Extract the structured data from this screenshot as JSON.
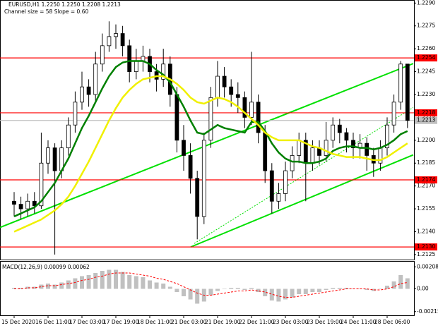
{
  "chart_data": [
    {
      "type": "candlestick",
      "title": "EURUSD,H1  1.2250 1.2250 1.2208 1.2213",
      "subtitle": "Channel size = 58 Slope = 0.60",
      "categories": [
        "15 Dec 2020",
        null,
        null,
        null,
        null,
        "16 Dec 11:00",
        null,
        null,
        null,
        null,
        "17 Dec 03:00",
        null,
        null,
        null,
        null,
        "17 Dec 19:00",
        null,
        null,
        null,
        null,
        "18 Dec 11:00",
        null,
        null,
        null,
        null,
        "21 Dec 03:00",
        null,
        null,
        null,
        null,
        "21 Dec 19:00",
        null,
        null,
        null,
        null,
        "22 Dec 11:00",
        null,
        null,
        null,
        null,
        "23 Dec 03:00",
        null,
        null,
        null,
        null,
        "23 Dec 19:00",
        null,
        null,
        null,
        null,
        "24 Dec 11:00",
        null,
        null,
        null,
        null,
        "28 Dec 06:00",
        null,
        null,
        null
      ],
      "open": [
        1.216,
        1.2158,
        1.2155,
        1.216,
        1.2157,
        1.2185,
        1.2195,
        1.218,
        1.2195,
        1.221,
        1.2225,
        1.2235,
        1.223,
        1.225,
        1.2262,
        1.2268,
        1.227,
        1.2262,
        1.2245,
        1.2252,
        1.2255,
        1.2245,
        1.224,
        1.225,
        1.223,
        1.22,
        1.219,
        1.2175,
        1.215,
        1.22,
        1.2228,
        1.2242,
        1.2235,
        1.223,
        1.2228,
        1.2215,
        1.2225,
        1.2205,
        1.218,
        1.216,
        1.2165,
        1.218,
        1.219,
        1.22,
        1.2185,
        1.2195,
        1.219,
        1.22,
        1.221,
        1.2205,
        1.22,
        1.2195,
        1.2198,
        1.219,
        1.2185,
        1.2195,
        1.221,
        1.2225,
        1.225
      ],
      "high": [
        1.2166,
        1.2163,
        1.2165,
        1.2166,
        1.2205,
        1.22,
        1.2198,
        1.22,
        1.2215,
        1.2232,
        1.2245,
        1.224,
        1.2258,
        1.227,
        1.2278,
        1.2276,
        1.2275,
        1.2266,
        1.226,
        1.2262,
        1.226,
        1.225,
        1.226,
        1.2255,
        1.2235,
        1.221,
        1.2198,
        1.218,
        1.2205,
        1.2235,
        1.2252,
        1.2248,
        1.224,
        1.2238,
        1.2232,
        1.2258,
        1.223,
        1.221,
        1.2185,
        1.2172,
        1.2186,
        1.2196,
        1.2205,
        1.2205,
        1.22,
        1.22,
        1.2212,
        1.2215,
        1.2214,
        1.2208,
        1.2205,
        1.2204,
        1.2202,
        1.2195,
        1.22,
        1.2215,
        1.223,
        1.2252,
        1.225
      ],
      "low": [
        1.215,
        1.2148,
        1.215,
        1.2152,
        1.2155,
        1.2178,
        1.2125,
        1.2175,
        1.219,
        1.2205,
        1.222,
        1.2222,
        1.2225,
        1.2245,
        1.2258,
        1.226,
        1.2255,
        1.2238,
        1.224,
        1.2245,
        1.2238,
        1.2232,
        1.2235,
        1.2222,
        1.2192,
        1.218,
        1.2165,
        1.2135,
        1.2145,
        1.2195,
        1.2222,
        1.2228,
        1.2222,
        1.2218,
        1.2208,
        1.221,
        1.2198,
        1.2172,
        1.2152,
        1.2155,
        1.216,
        1.2175,
        1.2185,
        1.216,
        1.218,
        1.2184,
        1.2186,
        1.2195,
        1.2198,
        1.2192,
        1.2188,
        1.2188,
        1.218,
        1.2176,
        1.218,
        1.219,
        1.2205,
        1.222,
        1.2208
      ],
      "close": [
        1.2158,
        1.2155,
        1.216,
        1.2157,
        1.2185,
        1.2195,
        1.218,
        1.2195,
        1.221,
        1.2225,
        1.2235,
        1.223,
        1.225,
        1.2262,
        1.2268,
        1.227,
        1.2262,
        1.2245,
        1.2252,
        1.2255,
        1.2245,
        1.224,
        1.225,
        1.223,
        1.22,
        1.219,
        1.2175,
        1.215,
        1.22,
        1.2228,
        1.2242,
        1.2235,
        1.223,
        1.2228,
        1.2215,
        1.2225,
        1.2205,
        1.218,
        1.216,
        1.2165,
        1.218,
        1.219,
        1.22,
        1.2185,
        1.2195,
        1.219,
        1.22,
        1.221,
        1.2205,
        1.22,
        1.2195,
        1.2198,
        1.219,
        1.2185,
        1.2195,
        1.221,
        1.2225,
        1.225,
        1.2213
      ],
      "series": [
        {
          "color": "#008000",
          "values": [
            1.215,
            1.2152,
            1.2154,
            1.2156,
            1.216,
            1.2166,
            1.2172,
            1.218,
            1.2188,
            1.2198,
            1.2208,
            1.2216,
            1.2225,
            1.2234,
            1.2242,
            1.2248,
            1.2251,
            1.2252,
            1.2252,
            1.2252,
            1.225,
            1.2246,
            1.2243,
            1.2238,
            1.223,
            1.2222,
            1.2213,
            1.2205,
            1.2204,
            1.2207,
            1.221,
            1.2208,
            1.2207,
            1.2206,
            1.2205,
            1.2212,
            1.2212,
            1.2206,
            1.2198,
            1.2192,
            1.2188,
            1.2186,
            1.2186,
            1.2185,
            1.2185,
            1.2186,
            1.2188,
            1.2193,
            1.2195,
            1.2196,
            1.2196,
            1.2195,
            1.2195,
            1.2194,
            1.2195,
            1.2197,
            1.22,
            1.2204,
            1.2206
          ]
        },
        {
          "color": "#f0f000",
          "values": [
            1.214,
            1.2142,
            1.2144,
            1.2146,
            1.2148,
            1.2151,
            1.2154,
            1.2158,
            1.2163,
            1.217,
            1.2178,
            1.2186,
            1.2195,
            1.2204,
            1.2213,
            1.2221,
            1.2228,
            1.2233,
            1.2237,
            1.224,
            1.2241,
            1.2242,
            1.2242,
            1.224,
            1.2237,
            1.2233,
            1.2228,
            1.2225,
            1.2224,
            1.2226,
            1.2228,
            1.2227,
            1.2225,
            1.2222,
            1.2218,
            1.2214,
            1.221,
            1.2205,
            1.2202,
            1.22,
            1.22,
            1.22,
            1.22,
            1.2198,
            1.2196,
            1.2195,
            1.2193,
            1.2191,
            1.219,
            1.2189,
            1.2189,
            1.2189,
            1.2188,
            1.2187,
            1.2187,
            1.2189,
            1.2192,
            1.2195,
            1.2198
          ]
        }
      ],
      "trend_lines": [
        {
          "x": [
            -2.08,
            58.85
          ],
          "y": [
            1.21428,
            1.22503
          ],
          "color": "#00e000",
          "dash": false
        },
        {
          "x": [
            26.04,
            58.85
          ],
          "y": [
            1.213,
            1.21904
          ],
          "color": "#00e000",
          "dash": false
        },
        {
          "x": [
            26.56,
            58.85
          ],
          "y": [
            1.21323,
            1.22215
          ],
          "color": "#00e000",
          "dash": true
        }
      ],
      "levels": [
        {
          "value": 1.2254,
          "color": "#ff0000",
          "text_color": "#ffffff"
        },
        {
          "value": 1.2218,
          "color": "#ff0000",
          "text_color": "#ffffff"
        },
        {
          "value": 1.2213,
          "color": "#c0c0c0",
          "text_color": "#000000"
        },
        {
          "value": 1.2174,
          "color": "#ff0000",
          "text_color": "#ffffff"
        },
        {
          "value": 1.213,
          "label": "1.2130",
          "color": "#ff0000",
          "text_color": "#ffffff"
        }
      ],
      "ylim": [
        1.21245,
        1.2292
      ],
      "yticks": [
        {
          "value": 1.229,
          "label": "1.2290"
        },
        1.2275,
        {
          "value": 1.226,
          "label": "1.2260"
        },
        1.2245,
        {
          "value": 1.223,
          "label": "1.2230"
        },
        1.2215,
        {
          "value": 1.22,
          "label": "1.2200"
        },
        1.2185,
        {
          "value": 1.217,
          "label": "1.2170"
        },
        1.2155,
        {
          "value": 1.214,
          "label": "1.2140"
        },
        1.2125
      ]
    },
    {
      "type": "macd",
      "title": "MACD(12,26,9) 0.00099 0.00062",
      "values": [
        0.0001,
        0.0001,
        0.0002,
        0.0002,
        0.0004,
        0.0005,
        0.0004,
        0.0006,
        0.0008,
        0.001,
        0.0012,
        0.0013,
        0.0015,
        0.0017,
        0.0018,
        0.0018,
        0.0016,
        0.0013,
        0.0012,
        0.0011,
        0.0008,
        0.0006,
        0.0005,
        0.0002,
        -0.0003,
        -0.0007,
        -0.001,
        -0.0014,
        -0.0012,
        -0.0006,
        -0.0002,
        0.0,
        0.0001,
        0.0001,
        -0.0001,
        0.0001,
        -0.0003,
        -0.0007,
        -0.0011,
        -0.0012,
        -0.001,
        -0.0008,
        -0.0005,
        -0.0005,
        -0.0003,
        -0.0003,
        -0.0001,
        0.0001,
        0.0001,
        0.0001,
        0.0,
        0.0,
        -0.0001,
        -0.0002,
        0.0,
        0.0003,
        0.0007,
        0.0013,
        0.001
      ],
      "color": "#c0c0c0",
      "signal": [
        0.0,
        0.0,
        0.0001,
        0.0001,
        0.0002,
        0.0003,
        0.0003,
        0.0004,
        0.0005,
        0.0006,
        0.0008,
        0.0009,
        0.0011,
        0.0012,
        0.0014,
        0.0015,
        0.0015,
        0.0015,
        0.0014,
        0.0013,
        0.0012,
        0.001,
        0.0009,
        0.0007,
        0.0005,
        0.0002,
        -0.0001,
        -0.0004,
        -0.0006,
        -0.0006,
        -0.0005,
        -0.0004,
        -0.0003,
        -0.0002,
        -0.0002,
        -0.0001,
        -0.0002,
        -0.0003,
        -0.0005,
        -0.0007,
        -0.0008,
        -0.0008,
        -0.0007,
        -0.0006,
        -0.0005,
        -0.0004,
        -0.0003,
        -0.0002,
        -0.0001,
        0.0,
        0.0,
        0.0,
        0.0,
        -0.0001,
        -0.0001,
        0.0,
        0.0002,
        0.0005,
        0.0006
      ],
      "signal_color": "#ff0000",
      "ylim": [
        -0.0025,
        0.0025
      ],
      "yticks": [
        0.00208,
        {
          "value": 0,
          "label": "0.00"
        },
        -0.00215
      ]
    }
  ]
}
